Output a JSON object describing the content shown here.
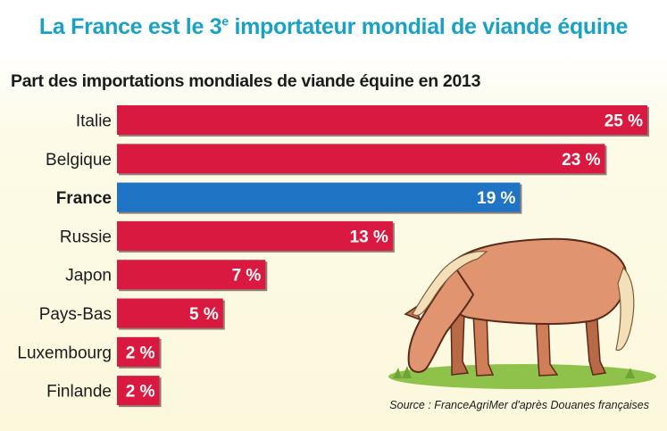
{
  "title_main": "La France est le 3",
  "title_sup": "e",
  "title_rest": " importateur mondial de viande équine",
  "source": "Source : FranceAgriMer d'après Douanes françaises",
  "colors": {
    "bar": "#d9193f",
    "highlight": "#1f74c6",
    "title": "#1aa1c4",
    "background": "#fdfbe6"
  },
  "chart_data": {
    "type": "bar",
    "orientation": "horizontal",
    "title": "Part des importations mondiales de viande équine en 2013",
    "categories": [
      "Italie",
      "Belgique",
      "France",
      "Russie",
      "Japon",
      "Pays-Bas",
      "Luxembourg",
      "Finlande"
    ],
    "values": [
      25,
      23,
      19,
      13,
      7,
      5,
      2,
      2
    ],
    "labels": [
      "25 %",
      "23 %",
      "19 %",
      "13 %",
      "7 %",
      "5 %",
      "2 %",
      "2 %"
    ],
    "highlight": "France",
    "unit": "%",
    "xlim": [
      0,
      25
    ],
    "grid": false,
    "legend": false
  }
}
